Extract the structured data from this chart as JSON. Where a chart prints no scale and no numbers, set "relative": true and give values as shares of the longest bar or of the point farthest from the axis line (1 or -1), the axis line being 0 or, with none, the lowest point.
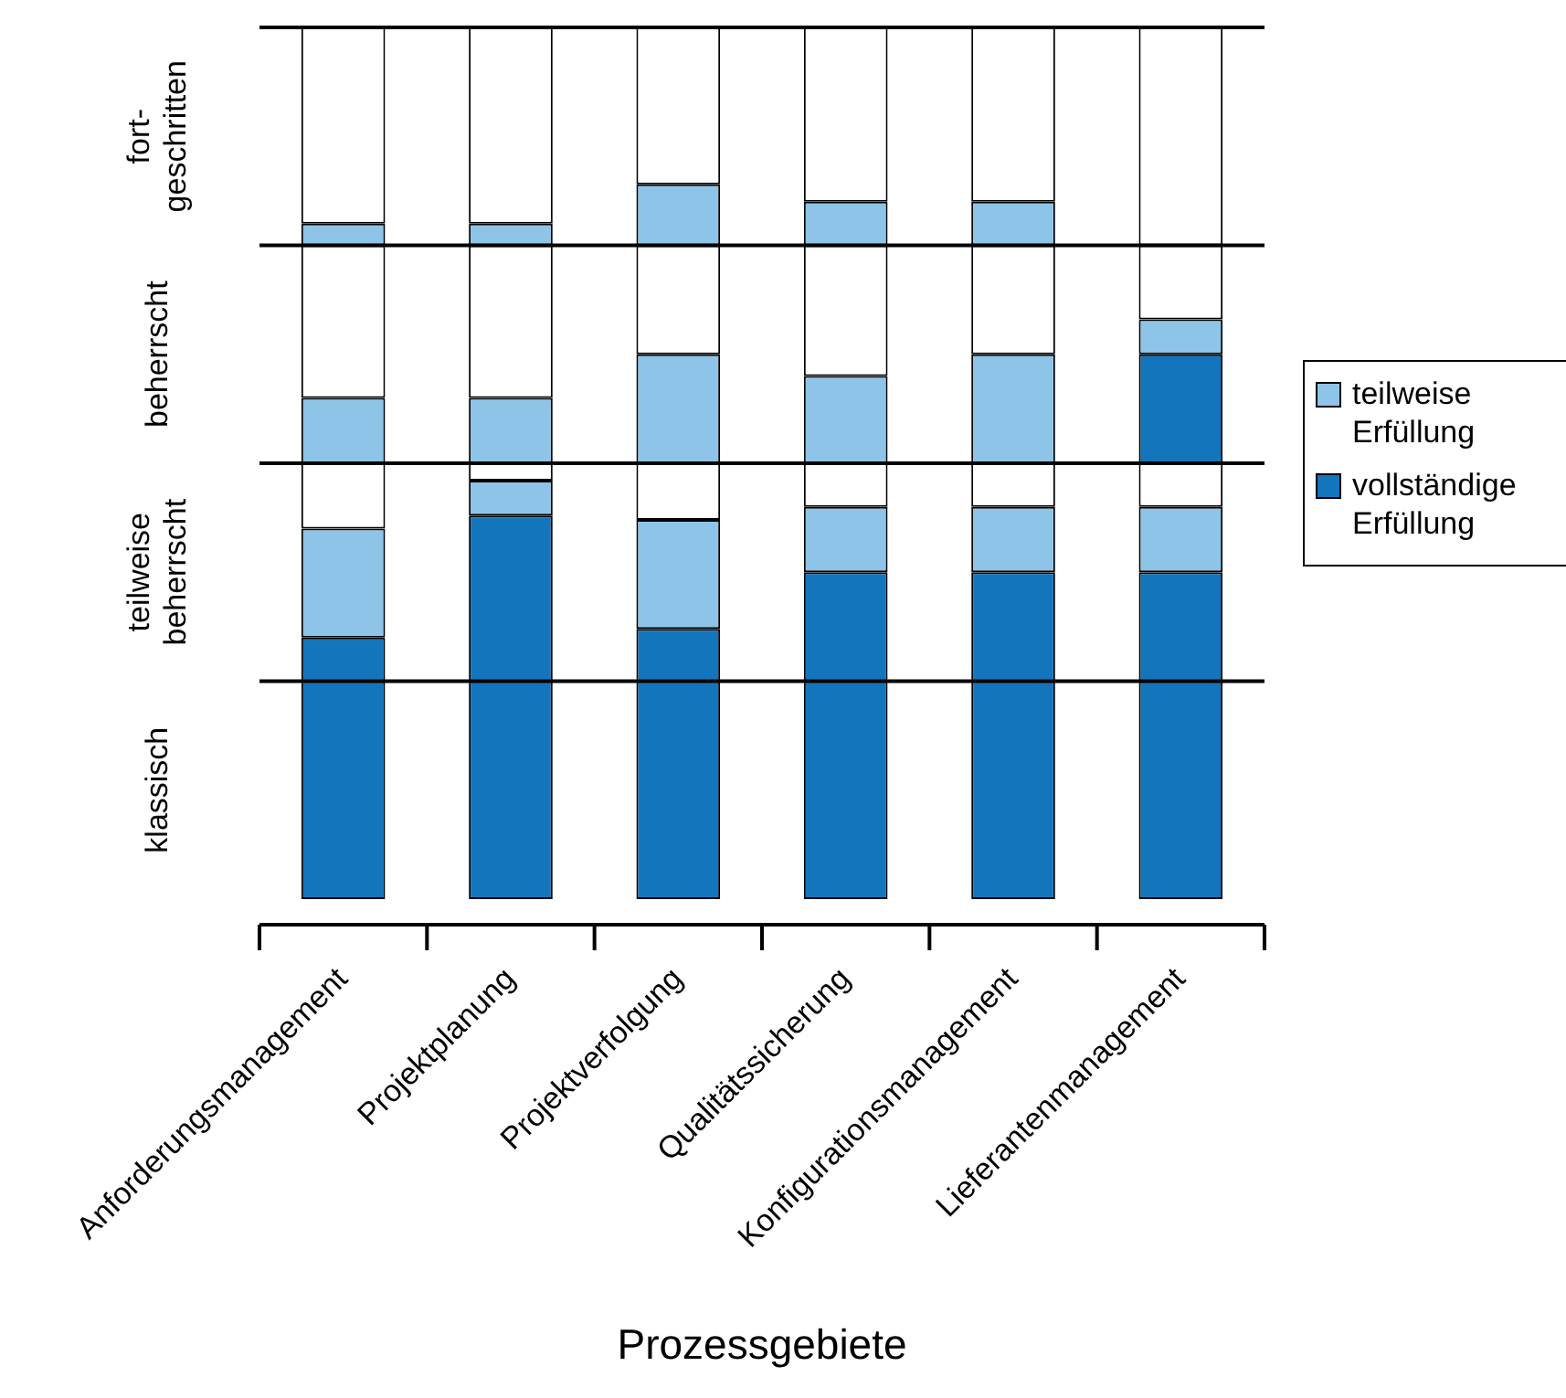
{
  "chart_data": {
    "type": "bar",
    "stacked": true,
    "relative": true,
    "xlabel": "Prozessgebiete",
    "categories": [
      "Anforderungsmanagement",
      "Projektplanung",
      "Projektverfolgung",
      "Qualitätssicherung",
      "Konfigurationsmanagement",
      "Lieferantenmanagement"
    ],
    "annotations": [
      "klassisch",
      "teilweise\nbeherrscht",
      "beherrscht",
      "fort-\ngeschritten"
    ],
    "ref_lines": [
      {
        "axis": "y",
        "value": 0.25,
        "color": "#000000"
      },
      {
        "axis": "y",
        "value": 0.5,
        "color": "#000000"
      },
      {
        "axis": "y",
        "value": 0.75,
        "color": "#000000"
      },
      {
        "axis": "y",
        "value": 1,
        "color": "#000000"
      }
    ],
    "legend": "right",
    "series": [
      {
        "name": "vollständige Erfüllung",
        "color": "#1375bb",
        "values": [
          0.25,
          0.25,
          0.25,
          0.25,
          0.25,
          0.25
        ]
      },
      {
        "color": "#1375bb",
        "values": [
          0.05,
          0.19,
          0.06,
          0.125,
          0.125,
          0.125
        ]
      },
      {
        "name": "teilweise Erfüllung",
        "color": "#8dc4e7",
        "values": [
          0.125,
          0.04,
          0.125,
          0.075,
          0.075,
          0.075
        ]
      },
      {
        "color": "#ffffff",
        "values": [
          0.075,
          0.02,
          0.065,
          0.05,
          0.05,
          0.05
        ]
      },
      {
        "color": "#1375bb",
        "values": [
          0,
          0,
          0,
          0,
          0,
          0.125
        ]
      },
      {
        "color": "#8dc4e7",
        "values": [
          0.075,
          0.075,
          0.125,
          0.1,
          0.125,
          0.04
        ]
      },
      {
        "color": "#ffffff",
        "values": [
          0.175,
          0.175,
          0.125,
          0.15,
          0.125,
          0.085
        ]
      },
      {
        "color": "#8dc4e7",
        "values": [
          0.025,
          0.025,
          0.07,
          0.05,
          0.05,
          0
        ]
      },
      {
        "color": "#ffffff",
        "values": [
          0.225,
          0.225,
          0.18,
          0.2,
          0.2,
          0.25
        ]
      }
    ]
  }
}
